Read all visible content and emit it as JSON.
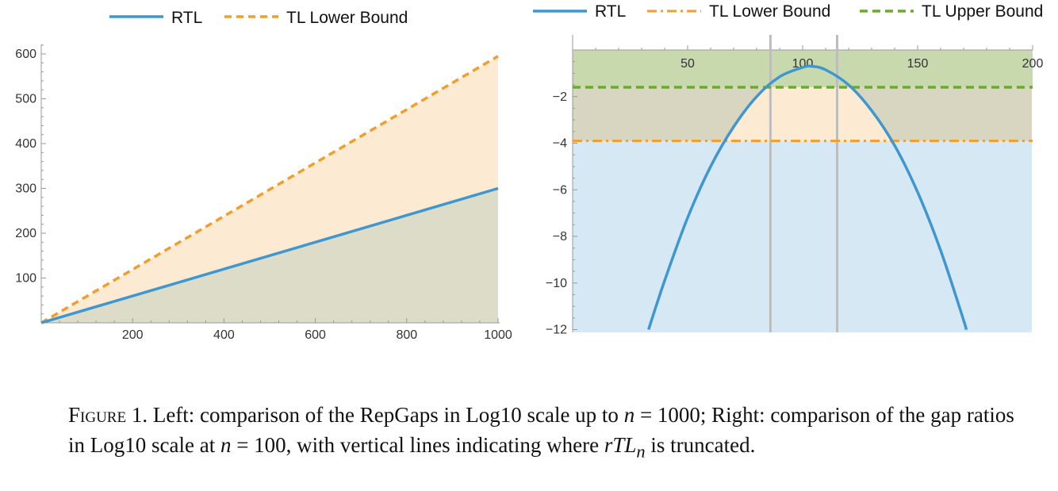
{
  "colors": {
    "rtl": "#3f97cf",
    "tl_lower": "#f29e2e",
    "tl_upper": "#6aab2f",
    "fill_lower": "#fcebd2",
    "fill_blue_region": "#d6e8f4",
    "fill_overlap": "#dcdcc8",
    "fill_green": "#c8d9ae",
    "fill_olive": "#d8d5c0",
    "vline": "#bdbdbd",
    "axis": "#9a9a9a"
  },
  "chart_data": [
    {
      "type": "line",
      "legend": [
        "RTL",
        "TL Lower Bound"
      ],
      "legend_position": "top",
      "grid": false,
      "x_ticks": [
        "200",
        "400",
        "600",
        "800",
        "1000"
      ],
      "y_ticks": [
        "100",
        "200",
        "300",
        "400",
        "500",
        "600"
      ],
      "xlim": [
        0,
        1000
      ],
      "ylim": [
        0,
        620
      ],
      "series": [
        {
          "name": "RTL",
          "style": "solid",
          "x": [
            0,
            1000
          ],
          "y": [
            0,
            300
          ]
        },
        {
          "name": "TL Lower Bound",
          "style": "dashed",
          "x": [
            0,
            1000
          ],
          "y": [
            0,
            595
          ]
        }
      ]
    },
    {
      "type": "line",
      "legend": [
        "RTL",
        "TL Lower Bound",
        "TL Upper Bound"
      ],
      "legend_position": "top",
      "grid": false,
      "x_ticks": [
        "50",
        "100",
        "150",
        "200"
      ],
      "y_ticks": [
        "−2",
        "−4",
        "−6",
        "−8",
        "−10",
        "−12"
      ],
      "xlim": [
        0,
        200
      ],
      "ylim": [
        -12,
        0
      ],
      "vertical_lines": [
        86,
        115
      ],
      "series": [
        {
          "name": "RTL",
          "style": "solid",
          "x": [
            33,
            40,
            50,
            60,
            70,
            80,
            90,
            100,
            104,
            110,
            120,
            130,
            140,
            150,
            160,
            170,
            171
          ],
          "y": [
            -12,
            -9.9,
            -7.2,
            -5.0,
            -3.3,
            -2.0,
            -1.15,
            -0.75,
            -0.7,
            -0.85,
            -1.5,
            -2.6,
            -4.1,
            -6.1,
            -8.6,
            -11.6,
            -12
          ]
        },
        {
          "name": "TL Lower Bound",
          "style": "dashdot",
          "x": [
            0,
            200
          ],
          "y": [
            -3.9,
            -3.9
          ]
        },
        {
          "name": "TL Upper Bound",
          "style": "dashed",
          "x": [
            0,
            200
          ],
          "y": [
            -1.6,
            -1.6
          ]
        }
      ]
    }
  ],
  "caption": {
    "lead": "Figure 1.",
    "text_parts": [
      " Left: comparison of the RepGaps in Log10 scale up to ",
      "n",
      " = 1000; Right: comparison of the gap ratios in Log10 scale at ",
      "n",
      " = 100, with vertical lines indicating where ",
      "rTL",
      "n",
      " is truncated."
    ]
  }
}
